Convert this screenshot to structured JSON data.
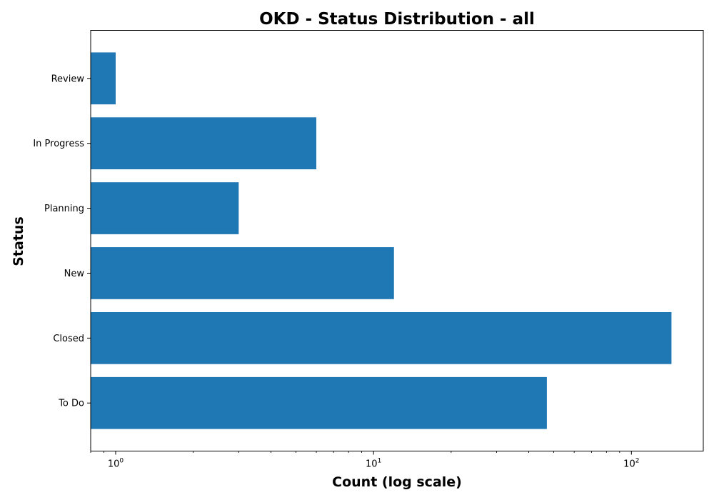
{
  "chart_data": {
    "type": "bar",
    "orientation": "horizontal",
    "title": "OKD - Status Distribution - all",
    "xlabel": "Count (log scale)",
    "ylabel": "Status",
    "x_scale": "log",
    "xlim": [
      0.8,
      190
    ],
    "x_ticks": [
      {
        "value": 1,
        "base": "10",
        "exp": "0"
      },
      {
        "value": 10,
        "base": "10",
        "exp": "1"
      },
      {
        "value": 100,
        "base": "10",
        "exp": "2"
      }
    ],
    "categories": [
      "To Do",
      "Closed",
      "New",
      "Planning",
      "In Progress",
      "Review"
    ],
    "values": [
      47,
      143,
      12,
      3,
      6,
      1
    ],
    "bar_color": "#1f77b4",
    "grid": false,
    "legend": "none"
  }
}
